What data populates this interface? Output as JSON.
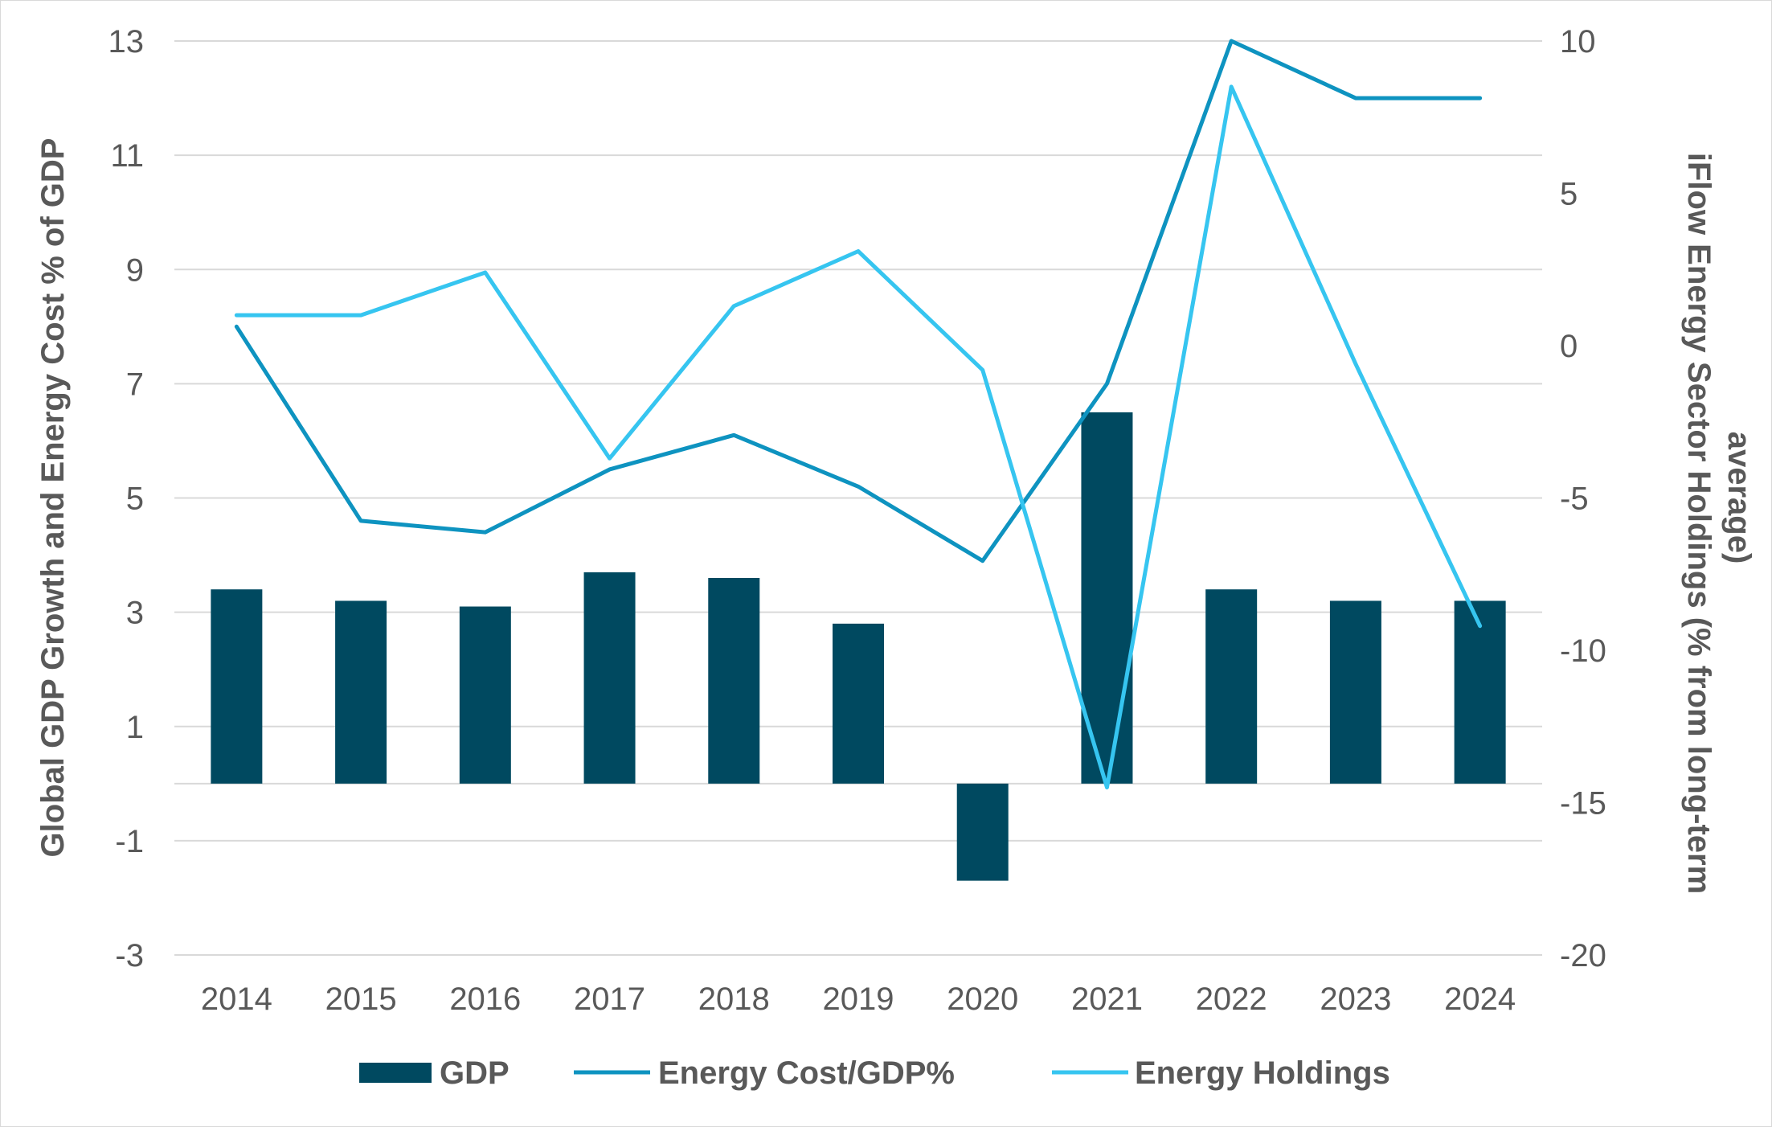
{
  "chart_data": {
    "type": "bar+line",
    "categories": [
      "2014",
      "2015",
      "2016",
      "2017",
      "2018",
      "2019",
      "2020",
      "2021",
      "2022",
      "2023",
      "2024"
    ],
    "series": [
      {
        "name": "GDP",
        "type": "bar",
        "axis": "left",
        "color": "#004960",
        "values": [
          3.4,
          3.2,
          3.1,
          3.7,
          3.6,
          2.8,
          -1.7,
          6.5,
          3.4,
          3.2,
          3.2
        ]
      },
      {
        "name": "Energy Cost/GDP%",
        "type": "line",
        "axis": "left",
        "color": "#0e93c0",
        "values": [
          8.0,
          4.6,
          4.4,
          5.5,
          6.1,
          5.2,
          3.9,
          7.0,
          13.0,
          12.0,
          12.0
        ]
      },
      {
        "name": "Energy Holdings",
        "type": "line",
        "axis": "right",
        "color": "#36c5f0",
        "values": [
          1.0,
          1.0,
          2.4,
          -3.7,
          1.3,
          3.1,
          -0.8,
          -14.5,
          8.5,
          -0.6,
          -9.2
        ]
      }
    ],
    "left_axis": {
      "label": "Global GDP Growth and Energy Cost % of GDP",
      "ylim": [
        -3,
        13
      ],
      "ticks": [
        "13",
        "11",
        "9",
        "7",
        "5",
        "3",
        "1",
        "-1",
        "-3"
      ]
    },
    "right_axis": {
      "label_line1": "iFlow Energy Sector Holdings (% from long-term",
      "label_line2": "average)",
      "ylim": [
        -20,
        10
      ],
      "ticks": [
        "10",
        "5",
        "0",
        "-5",
        "-10",
        "-15",
        "-20"
      ]
    },
    "gridlines": true,
    "legend_position": "bottom"
  }
}
